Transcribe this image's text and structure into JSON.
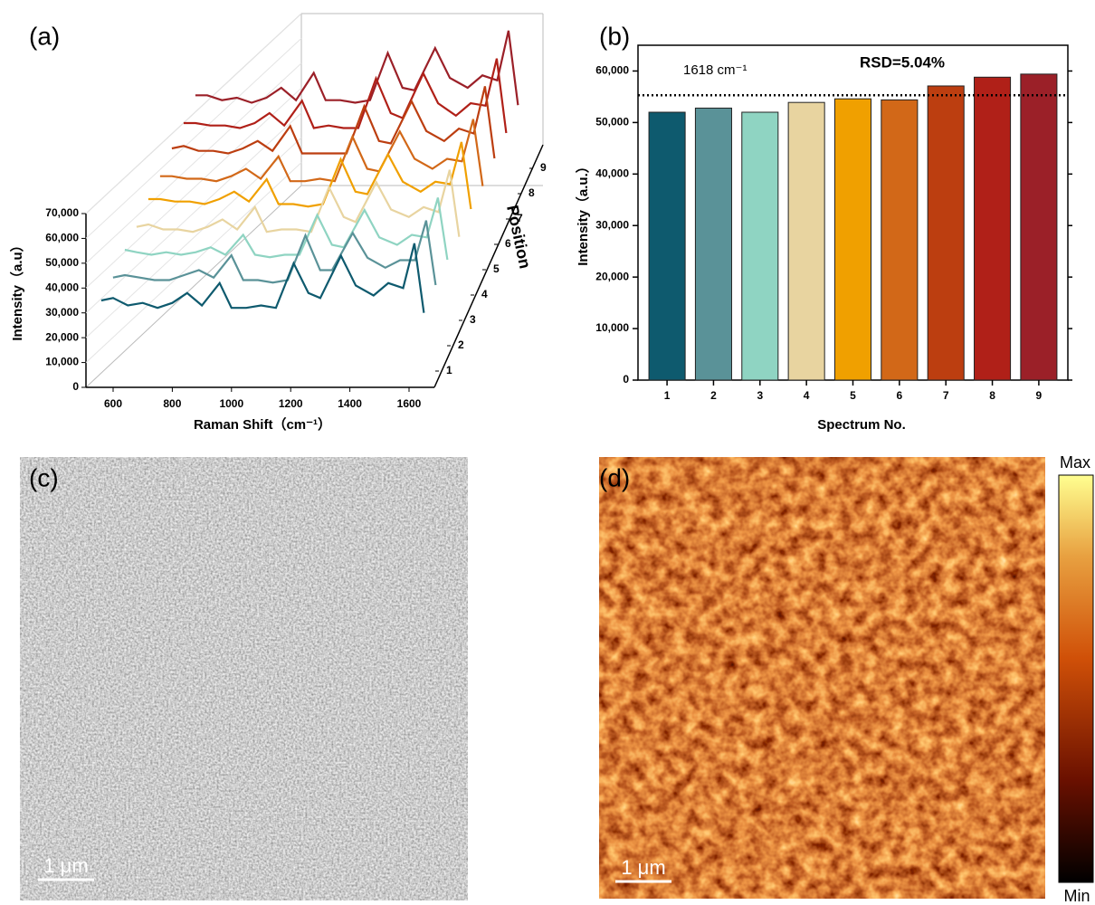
{
  "chart_data": [
    {
      "type": "waterfall",
      "panel_label": "(a)",
      "x_label": "Raman Shift（cm⁻¹）",
      "y_label": "Intensity（a.u）",
      "z_label": "Position",
      "x": [
        560,
        600,
        650,
        700,
        750,
        800,
        850,
        900,
        960,
        1000,
        1050,
        1100,
        1150,
        1210,
        1260,
        1300,
        1370,
        1420,
        1480,
        1530,
        1580,
        1618,
        1650
      ],
      "xlim": [
        510,
        1680
      ],
      "xticks": [
        600,
        800,
        1000,
        1200,
        1400,
        1600
      ],
      "ylim": [
        0,
        70000
      ],
      "yticks": [
        0,
        {
          "value": 10000,
          "label": "10,000"
        },
        {
          "value": 20000,
          "label": "20,000"
        },
        {
          "value": 30000,
          "label": "30,000"
        },
        {
          "value": 40000,
          "label": "40,000"
        },
        {
          "value": 50000,
          "label": "50,000"
        },
        {
          "value": 60000,
          "label": "60,000"
        },
        {
          "value": 70000,
          "label": "70,000"
        }
      ],
      "zticks": [
        1,
        2,
        3,
        4,
        5,
        6,
        7,
        8,
        9
      ],
      "series": [
        {
          "color": "#0e5a6e",
          "values": [
            35000,
            36000,
            33000,
            34000,
            32000,
            34000,
            38000,
            33000,
            42000,
            32000,
            32000,
            33000,
            32000,
            50000,
            38000,
            36000,
            53000,
            41000,
            37000,
            42000,
            40000,
            58000,
            30000
          ]
        },
        {
          "color": "#5a9298",
          "values": [
            34000,
            35000,
            34000,
            33000,
            33000,
            35000,
            37000,
            34000,
            43000,
            33000,
            33000,
            32000,
            33000,
            51000,
            37000,
            37000,
            52000,
            42000,
            38000,
            41000,
            41000,
            57000,
            31000
          ]
        },
        {
          "color": "#8fd4c2",
          "values": [
            35000,
            34000,
            33000,
            34000,
            33000,
            34000,
            36000,
            33000,
            41000,
            33000,
            32000,
            33000,
            33000,
            49000,
            37000,
            36000,
            51000,
            40000,
            37000,
            41000,
            40000,
            56000,
            31000
          ]
        },
        {
          "color": "#e8d4a0",
          "values": [
            34000,
            35000,
            33000,
            33000,
            32000,
            34000,
            37000,
            33000,
            42000,
            32000,
            33000,
            33000,
            32000,
            50000,
            38000,
            36000,
            52000,
            41000,
            38000,
            42000,
            40000,
            57000,
            30000
          ]
        },
        {
          "color": "#f0a000",
          "values": [
            35000,
            35000,
            34000,
            34000,
            33000,
            35000,
            38000,
            34000,
            43000,
            33000,
            33000,
            32000,
            33000,
            51000,
            38000,
            37000,
            53000,
            42000,
            38000,
            42000,
            41000,
            58000,
            31000
          ]
        },
        {
          "color": "#d26818",
          "values": [
            34000,
            34000,
            33000,
            33000,
            32000,
            34000,
            37000,
            33000,
            42000,
            32000,
            32000,
            33000,
            32000,
            50000,
            37000,
            36000,
            52000,
            41000,
            37000,
            41000,
            40000,
            57000,
            30000
          ]
        },
        {
          "color": "#bc3e10",
          "values": [
            35000,
            36000,
            34000,
            34000,
            33000,
            35000,
            38000,
            34000,
            44000,
            33000,
            33000,
            33000,
            33000,
            52000,
            38000,
            37000,
            54000,
            42000,
            38000,
            43000,
            41000,
            60000,
            31000
          ]
        },
        {
          "color": "#b02018",
          "values": [
            35000,
            35000,
            34000,
            34000,
            33000,
            35000,
            39000,
            34000,
            44000,
            33000,
            34000,
            33000,
            33000,
            53000,
            39000,
            37000,
            55000,
            43000,
            38000,
            43000,
            42000,
            61000,
            31000
          ]
        },
        {
          "color": "#9b2028",
          "values": [
            36000,
            36000,
            34000,
            35000,
            33000,
            35000,
            39000,
            34000,
            45000,
            34000,
            34000,
            33000,
            34000,
            53000,
            39000,
            38000,
            55000,
            43000,
            39000,
            44000,
            42000,
            62000,
            32000
          ]
        }
      ]
    },
    {
      "type": "bar",
      "panel_label": "(b)",
      "x_label": "Spectrum No.",
      "y_label": "Intensity（a.u.）",
      "annotations": [
        "1618 cm⁻¹",
        "RSD=5.04%"
      ],
      "reference_line": 55300,
      "categories": [
        "1",
        "2",
        "3",
        "4",
        "5",
        "6",
        "7",
        "8",
        "9"
      ],
      "values": [
        52000,
        52800,
        52000,
        53900,
        54600,
        54400,
        57100,
        58800,
        59400
      ],
      "colors": [
        "#0e5a6e",
        "#5a9298",
        "#8fd4c2",
        "#e8d4a0",
        "#f0a000",
        "#d26818",
        "#bc3e10",
        "#b02018",
        "#9b2028"
      ],
      "ylim": [
        0,
        65000
      ],
      "yticks": [
        0,
        {
          "value": 10000,
          "label": "10,000"
        },
        {
          "value": 20000,
          "label": "20,000"
        },
        {
          "value": 30000,
          "label": "30,000"
        },
        {
          "value": 40000,
          "label": "40,000"
        },
        {
          "value": 50000,
          "label": "50,000"
        },
        {
          "value": 60000,
          "label": "60,000"
        }
      ]
    }
  ],
  "images": [
    {
      "panel_label": "(c)",
      "scale_bar": "1 μm"
    },
    {
      "panel_label": "(d)",
      "scale_bar": "1 μm",
      "colorbar_max": "Max",
      "colorbar_min": "Min"
    }
  ]
}
